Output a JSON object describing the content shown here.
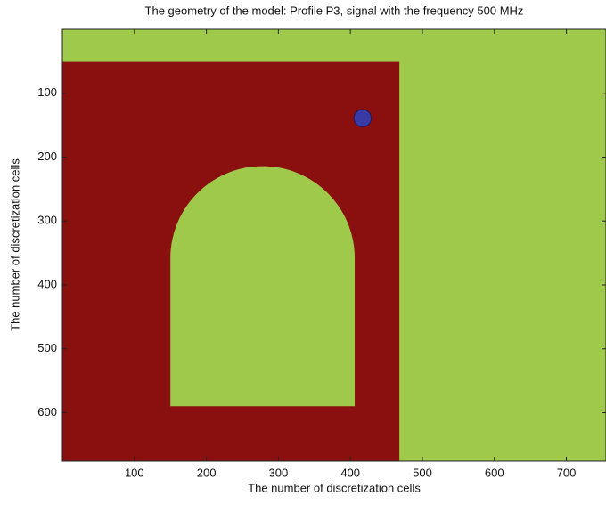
{
  "chart_data": {
    "type": "image",
    "title": "The geometry of the model: Profile P3, signal with the frequency 500 MHz",
    "xlabel": "The number of discretization cells",
    "ylabel": "The number of discretization cells",
    "xlim": [
      0,
      755
    ],
    "ylim": [
      0,
      676
    ],
    "y_reversed": true,
    "xticks": [
      100,
      200,
      300,
      400,
      500,
      600,
      700
    ],
    "yticks": [
      100,
      200,
      300,
      400,
      500,
      600
    ],
    "background": "#9ec94a",
    "shapes": [
      {
        "kind": "rect",
        "color": "#8a1010",
        "x": [
          0,
          468
        ],
        "y": [
          51,
          676
        ]
      },
      {
        "kind": "arch",
        "color": "#9ec94a",
        "x": [
          150,
          406
        ],
        "y": [
          214,
          590
        ]
      },
      {
        "kind": "circle",
        "color": "#3a3aa6",
        "x": 417,
        "y": 139,
        "r": 12
      }
    ]
  }
}
